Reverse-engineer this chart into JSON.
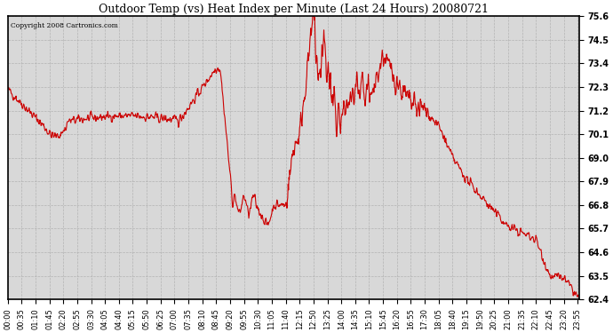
{
  "title": "Outdoor Temp (vs) Heat Index per Minute (Last 24 Hours) 20080721",
  "copyright": "Copyright 2008 Cartronics.com",
  "line_color": "#cc0000",
  "bg_color": "#ffffff",
  "plot_bg_color": "#d8d8d8",
  "grid_color": "#aaaaaa",
  "ylim_min": 62.4,
  "ylim_max": 75.6,
  "yticks": [
    62.4,
    63.5,
    64.6,
    65.7,
    66.8,
    67.9,
    69.0,
    70.1,
    71.2,
    72.3,
    73.4,
    74.5,
    75.6
  ],
  "xtick_labels": [
    "00:00",
    "00:35",
    "01:10",
    "01:45",
    "02:20",
    "02:55",
    "03:30",
    "04:05",
    "04:40",
    "05:15",
    "05:50",
    "06:25",
    "07:00",
    "07:35",
    "08:10",
    "08:45",
    "09:20",
    "09:55",
    "10:30",
    "11:05",
    "11:40",
    "12:15",
    "12:50",
    "13:25",
    "14:00",
    "14:35",
    "15:10",
    "15:45",
    "16:20",
    "16:55",
    "17:30",
    "18:05",
    "18:40",
    "19:15",
    "19:50",
    "20:25",
    "21:00",
    "21:35",
    "22:10",
    "22:45",
    "23:20",
    "23:55"
  ],
  "figwidth": 6.9,
  "figheight": 3.75,
  "dpi": 100
}
